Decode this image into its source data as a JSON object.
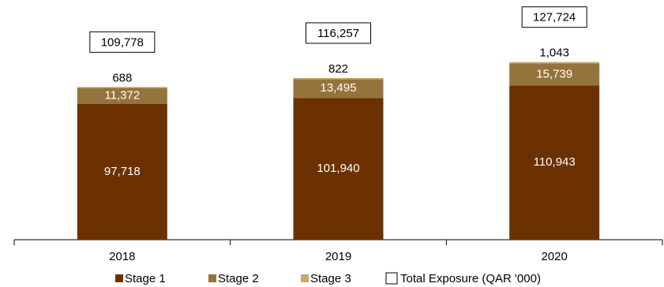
{
  "chart_data": {
    "type": "bar",
    "stacked": true,
    "categories": [
      "2018",
      "2019",
      "2020"
    ],
    "series": [
      {
        "name": "Stage 1",
        "values": [
          97718,
          101940,
          110943
        ],
        "color": "#6b3100",
        "label_color": "#ffffff"
      },
      {
        "name": "Stage 2",
        "values": [
          11372,
          13495,
          15739
        ],
        "color": "#95733c",
        "label_color": "#ffffff"
      },
      {
        "name": "Stage 3",
        "values": [
          688,
          822,
          1043
        ],
        "color": "#c8a96b",
        "label_color": "#000000"
      }
    ],
    "totals": {
      "name": "Total Exposure (QAR '000)",
      "values": [
        109778,
        116257,
        127724
      ]
    },
    "legend": [
      "Stage 1",
      "Stage 2",
      "Stage 3",
      "Total Exposure (QAR '000)"
    ],
    "legend_position": "bottom",
    "grid": false,
    "title": "",
    "xlabel": "",
    "ylabel": ""
  }
}
